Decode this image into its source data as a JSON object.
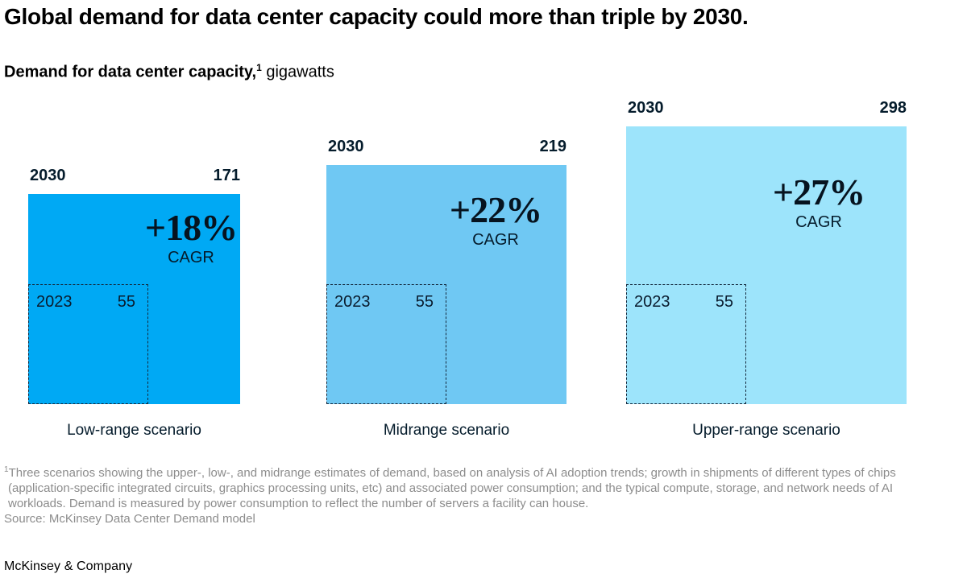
{
  "header": {
    "title": "Global demand for data center capacity could more than triple by 2030.",
    "subtitle_bold": "Demand for data center capacity,",
    "subtitle_superscript": "1",
    "subtitle_unit": " gigawatts"
  },
  "chart_data": {
    "type": "area",
    "variant": "nested-squares",
    "title": "Global demand for data center capacity could more than triple by 2030.",
    "subtitle": "Demand for data center capacity, gigawatts",
    "unit": "gigawatts",
    "base_year": 2023,
    "projection_year": 2030,
    "scale_note": "square side length proportional to sqrt(value); all squares bottom-aligned",
    "scenarios": [
      {
        "label": "Low-range scenario",
        "projection_year": "2030",
        "projection_value": 171,
        "base_year": "2023",
        "base_value": 55,
        "cagr": "+18%",
        "cagr_percent": 18,
        "cagr_label": "CAGR",
        "color": "#00A9F4"
      },
      {
        "label": "Midrange scenario",
        "projection_year": "2030",
        "projection_value": 219,
        "base_year": "2023",
        "base_value": 55,
        "cagr": "+22%",
        "cagr_percent": 22,
        "cagr_label": "CAGR",
        "color": "#6FC8F3"
      },
      {
        "label": "Upper-range scenario",
        "projection_year": "2030",
        "projection_value": 298,
        "base_year": "2023",
        "base_value": 55,
        "cagr": "+27%",
        "cagr_percent": 27,
        "cagr_label": "CAGR",
        "color": "#9DE4FB"
      }
    ]
  },
  "footnote": {
    "superscript": "1",
    "text": "Three scenarios showing the upper-, low-, and midrange estimates of demand, based on analysis of AI adoption trends; growth in shipments of different types of chips (application-specific integrated circuits, graphics processing units, etc) and associated power consumption; and the typical compute, storage, and network needs of AI workloads. Demand is measured by power consumption to reflect the number of servers a facility can house.",
    "source": "Source: McKinsey Data Center Demand model"
  },
  "brand": "McKinsey & Company"
}
